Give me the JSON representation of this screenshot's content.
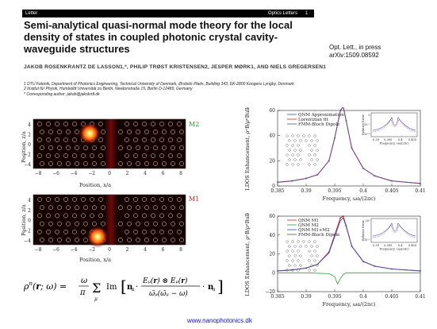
{
  "header": {
    "journal_tag": "Letter",
    "section": "Optics Letters",
    "page": "1"
  },
  "paper": {
    "title": "Semi-analytical quasi-normal mode theory for the local density of states in coupled photonic crystal cavity-waveguide structures",
    "authors": "JAKOB ROSENKRANTZ DE LASSON1,*, PHILIP TRØST KRISTENSEN2, JESPER MØRK1, AND NIELS GREGERSEN1",
    "affiliations": [
      "1 DTU Fotonik, Department of Photonics Engineering, Technical University of Denmark, Ørsteds Plads, Building 343, DK-2800 Kongens Lyngby, Denmark",
      "2 Institut für Physik, Humboldt Universität zu Berlin, Newtonstraße 15, Berlin D-12489, Germany",
      "* Corresponding author: jakob@jakobrdl.dk"
    ],
    "reference": [
      "Opt. Lett., in press",
      "arXiv:1509.08592"
    ]
  },
  "field_maps": [
    {
      "label": "M2",
      "label_color": "#2aa02a",
      "xlabel": "Position, x/a",
      "ylabel": "Position, z/a",
      "xticks": [
        "−8",
        "−6",
        "−4",
        "−2",
        "0",
        "2",
        "4",
        "6",
        "8"
      ],
      "yticks": [
        "4",
        "2",
        "0",
        "−2",
        "−4"
      ]
    },
    {
      "label": "M1",
      "label_color": "#c02020",
      "xlabel": "Position, x/a",
      "ylabel": "Position, z/a",
      "xticks": [
        "−8",
        "−6",
        "−4",
        "−2",
        "0",
        "2",
        "4",
        "6",
        "8"
      ],
      "yticks": [
        "4",
        "2",
        "0",
        "−2",
        "−4"
      ]
    }
  ],
  "equation": "ρⁿ(r; ω) = (ω/π) Σμ Im [ nₐ · (Eμ(r) ⊗ Eμ(r)) / (ω̃μ(ω̃μ − ω)) · nₐ ]",
  "chart_data": [
    {
      "type": "line",
      "title": "",
      "xlabel": "Frequency, ωa/(2πc)",
      "ylabel": "LDOS Enhancement, ρⁿB/ρⁿBulk",
      "xlim": [
        0.385,
        0.41
      ],
      "ylim": [
        0,
        60
      ],
      "xticks": [
        "0.385",
        "0.39",
        "0.395",
        "0.4",
        "0.405",
        "0.41"
      ],
      "yticks": [
        "0",
        "20",
        "40",
        "60"
      ],
      "legend": [
        "QNM Approximation",
        "Lorentzian fit",
        "FMM-Bloch Dipole"
      ],
      "series": [
        {
          "name": "QNM Approximation",
          "color": "#3050c0",
          "x": [
            0.385,
            0.3875,
            0.39,
            0.392,
            0.394,
            0.395,
            0.396,
            0.3965,
            0.397,
            0.398,
            0.4,
            0.402,
            0.405,
            0.41
          ],
          "y": [
            3,
            4,
            6,
            9,
            20,
            38,
            60,
            63,
            52,
            30,
            14,
            8,
            4,
            2
          ]
        },
        {
          "name": "Lorentzian fit",
          "color": "#c03030",
          "x": [
            0.385,
            0.3875,
            0.39,
            0.392,
            0.394,
            0.395,
            0.396,
            0.3965,
            0.397,
            0.398,
            0.4,
            0.402,
            0.405,
            0.41
          ],
          "y": [
            3,
            4,
            6,
            9,
            20,
            38,
            60,
            63,
            52,
            30,
            14,
            8,
            4,
            2
          ]
        }
      ],
      "inset": {
        "ylabel": "Relative Error",
        "xlabel": "Frequency, ωa/(2πc)",
        "xticks": [
          "0.39",
          "0.395",
          "0.4",
          "0.405"
        ],
        "yticks": [
          "0",
          "10⁻²",
          "10⁻⁴"
        ]
      }
    },
    {
      "type": "line",
      "title": "",
      "xlabel": "Frequency, ωa/(2πc)",
      "ylabel": "LDOS Enhancement, ρⁿB/ρⁿBulk",
      "xlim": [
        0.385,
        0.41
      ],
      "ylim": [
        -20,
        60
      ],
      "xticks": [
        "0.385",
        "0.39",
        "0.395",
        "0.4",
        "0.405",
        "0.41"
      ],
      "yticks": [
        "−20",
        "0",
        "20",
        "40",
        "60"
      ],
      "legend": [
        "QNM M1",
        "QNM M2",
        "QNM M1+M2",
        "FMM-Bloch Dipole"
      ],
      "series": [
        {
          "name": "QNM M1",
          "color": "#c03030",
          "x": [
            0.385,
            0.3875,
            0.39,
            0.392,
            0.394,
            0.395,
            0.396,
            0.3965,
            0.397,
            0.398,
            0.4,
            0.402,
            0.405,
            0.41
          ],
          "y": [
            2,
            3,
            5,
            9,
            22,
            40,
            58,
            60,
            50,
            28,
            12,
            7,
            4,
            2
          ]
        },
        {
          "name": "QNM M2",
          "color": "#30a030",
          "x": [
            0.385,
            0.39,
            0.394,
            0.395,
            0.3955,
            0.396,
            0.3965,
            0.397,
            0.4,
            0.41
          ],
          "y": [
            0,
            0,
            -1,
            -4,
            -12,
            -6,
            -2,
            0,
            0,
            0
          ]
        },
        {
          "name": "QNM M1+M2",
          "color": "#3050c0",
          "x": [
            0.385,
            0.3875,
            0.39,
            0.392,
            0.394,
            0.395,
            0.396,
            0.3965,
            0.397,
            0.398,
            0.4,
            0.402,
            0.405,
            0.41
          ],
          "y": [
            2,
            3,
            5,
            9,
            21,
            38,
            55,
            58,
            49,
            28,
            12,
            7,
            4,
            2
          ]
        }
      ],
      "inset": {
        "ylabel": "Relative Error",
        "xlabel": "Frequency, ωa/(2πc)",
        "xticks": [
          "0.39",
          "0.395",
          "0.4",
          "0.405"
        ],
        "yticks": [
          "10⁰",
          "10⁻²"
        ]
      }
    }
  ],
  "footer": {
    "url": "www.nanophotonics.dk"
  }
}
